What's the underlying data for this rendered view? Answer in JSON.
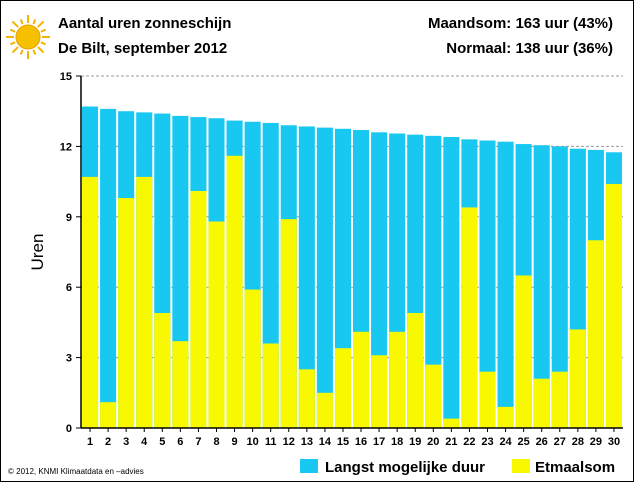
{
  "header": {
    "title": "Aantal uren zonneschijn",
    "subtitle": "De Bilt, september 2012",
    "month_sum": "Maandsom: 163 uur (43%)",
    "normal": "Normaal: 138 uur (36%)",
    "sun_icon": "sun-icon"
  },
  "footer": {
    "copyright": "© 2012, KNMI Klimaatdata en –advies"
  },
  "chart_data": {
    "type": "bar",
    "title": "Aantal uren zonneschijn",
    "subtitle": "De Bilt, september 2012",
    "xlabel": "",
    "ylabel": "Uren",
    "ylim": [
      0,
      15
    ],
    "yticks": [
      0,
      3,
      6,
      9,
      12,
      15
    ],
    "grid": true,
    "legend": "bottom",
    "categories": [
      "1",
      "2",
      "3",
      "4",
      "5",
      "6",
      "7",
      "8",
      "9",
      "10",
      "11",
      "12",
      "13",
      "14",
      "15",
      "16",
      "17",
      "18",
      "19",
      "20",
      "21",
      "22",
      "23",
      "24",
      "25",
      "26",
      "27",
      "28",
      "29",
      "30"
    ],
    "series": [
      {
        "name": "Langst mogelijke duur",
        "color": "#18c8f0",
        "values": [
          13.7,
          13.6,
          13.5,
          13.45,
          13.4,
          13.3,
          13.25,
          13.2,
          13.1,
          13.05,
          13.0,
          12.9,
          12.85,
          12.8,
          12.75,
          12.7,
          12.6,
          12.55,
          12.5,
          12.45,
          12.4,
          12.3,
          12.25,
          12.2,
          12.1,
          12.05,
          12.0,
          11.9,
          11.85,
          11.75
        ]
      },
      {
        "name": "Etmaalsom",
        "color": "#f8f800",
        "values": [
          10.7,
          1.1,
          9.8,
          10.7,
          4.9,
          3.7,
          10.1,
          8.8,
          11.6,
          5.9,
          3.6,
          8.9,
          2.5,
          1.5,
          3.4,
          4.1,
          3.1,
          4.1,
          4.9,
          2.7,
          0.4,
          9.4,
          2.4,
          0.9,
          6.5,
          2.1,
          2.4,
          4.2,
          8.0,
          10.4
        ]
      }
    ]
  }
}
